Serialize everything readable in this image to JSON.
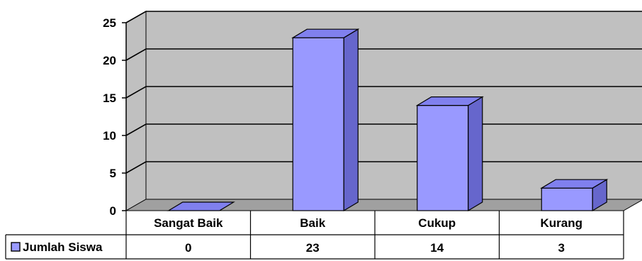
{
  "chart_data": {
    "type": "bar",
    "categories": [
      "Sangat Baik",
      "Baik",
      "Cukup",
      "Kurang"
    ],
    "series": [
      {
        "name": "Jumlah Siswa",
        "values": [
          0,
          23,
          14,
          3
        ],
        "color": "#9999ff"
      }
    ],
    "y_ticks": [
      "0",
      "5",
      "10",
      "15",
      "20",
      "25"
    ],
    "ylim": [
      0,
      25
    ],
    "grid": true,
    "legend": "data-table-left",
    "data_table": true,
    "colors": {
      "bar_front": "#9999ff",
      "bar_top": "#8080ee",
      "bar_side": "#6666cc",
      "wall": "#c0c0c0",
      "floor": "#a0a0a0"
    }
  }
}
